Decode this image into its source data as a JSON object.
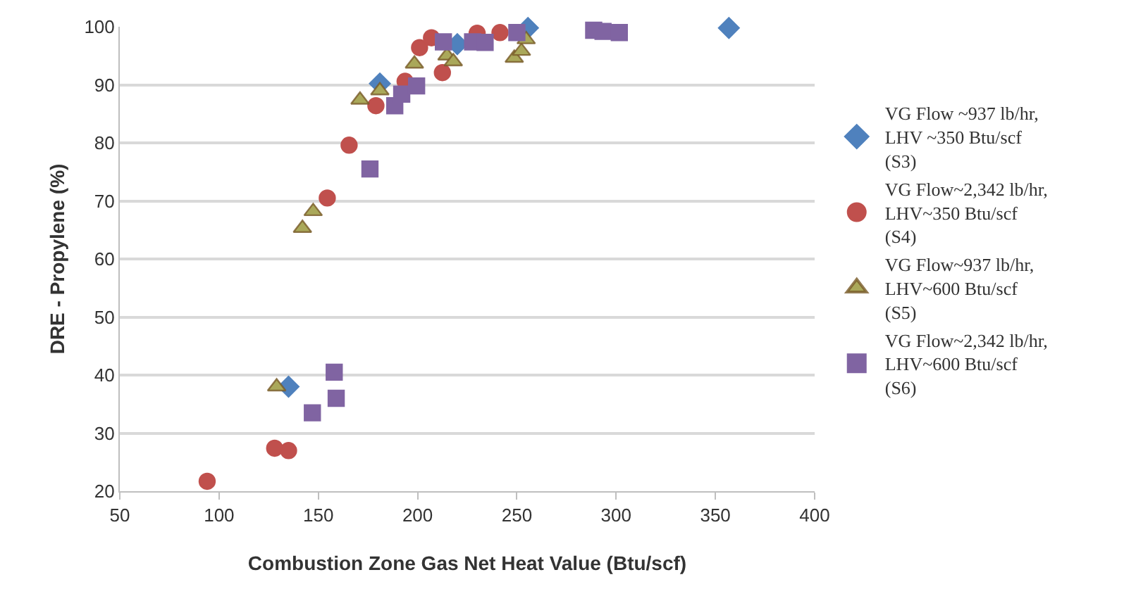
{
  "chart_data": {
    "type": "scatter",
    "xlabel": "Combustion Zone Gas Net Heat Value (Btu/scf)",
    "ylabel": "DRE - Propylene (%)",
    "xlim": [
      50,
      400
    ],
    "xticks": [
      50,
      100,
      150,
      200,
      250,
      300,
      350,
      400
    ],
    "ylim": [
      20,
      100
    ],
    "yticks": [
      20,
      30,
      40,
      50,
      60,
      70,
      80,
      90,
      100
    ],
    "grid": "y",
    "legend": "right",
    "series": [
      {
        "name": "VG Flow ~937 lb/hr,\nLHV ~350 Btu/scf\n(S3)",
        "color": "#4f81bd",
        "marker": "diamond",
        "x": [
          135,
          181,
          220,
          255.6,
          356.8
        ],
        "values": [
          38,
          90.2,
          97,
          99.8,
          99.8
        ]
      },
      {
        "name": "VG Flow~2,342 lb/hr,\nLHV~350 Btu/scf\n(S4)",
        "color": "#c0504d",
        "marker": "circle",
        "x": [
          94,
          128,
          135,
          154.5,
          165.5,
          179,
          193.7,
          199.5,
          201,
          207,
          212.5,
          227.7,
          230,
          241.5
        ],
        "values": [
          21.7,
          27.4,
          27,
          70.5,
          79.6,
          86.4,
          90.6,
          null,
          96.4,
          98.1,
          92.1,
          null,
          98.9,
          99
        ]
      },
      {
        "name": "VG Flow~937 lb/hr,\nLHV~600 Btu/scf\n(S5)",
        "color": "#aaa85a",
        "marker": "triangle",
        "x": [
          129,
          142,
          147.4,
          171,
          181,
          198.4,
          214.8,
          218,
          248.7,
          252.3,
          254.7
        ],
        "values": [
          38,
          65.3,
          68.2,
          87.4,
          89,
          93.6,
          95,
          94,
          94.6,
          95.8,
          97.8
        ]
      },
      {
        "name": "VG Flow~2,342 lb/hr,\nLHV~600 Btu/scf\n(S6)",
        "color": "#8064a2",
        "marker": "square",
        "x": [
          147,
          158,
          159,
          176,
          188.5,
          192,
          199.5,
          213,
          227.7,
          234,
          250,
          288.7,
          293.4,
          301.6
        ],
        "values": [
          33.5,
          40.5,
          36,
          75.5,
          86.4,
          88.4,
          89.8,
          97.4,
          97.4,
          97.3,
          99,
          99.4,
          99.2,
          99
        ]
      }
    ]
  }
}
